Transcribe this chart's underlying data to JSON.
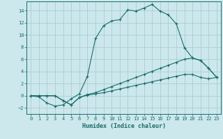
{
  "xlabel": "Humidex (Indice chaleur)",
  "bg_color": "#cce8ec",
  "line_color": "#1a6b6b",
  "grid_color": "#aacdd4",
  "xlim": [
    -0.5,
    23.5
  ],
  "ylim": [
    -3,
    15.5
  ],
  "xticks": [
    0,
    1,
    2,
    3,
    4,
    5,
    6,
    7,
    8,
    9,
    10,
    11,
    12,
    13,
    14,
    15,
    16,
    17,
    18,
    19,
    20,
    21,
    22,
    23
  ],
  "yticks": [
    -2,
    0,
    2,
    4,
    6,
    8,
    10,
    12,
    14
  ],
  "line1_x": [
    0,
    1,
    2,
    3,
    4,
    5,
    6,
    7,
    8,
    9,
    10,
    11,
    12,
    13,
    14,
    15,
    16,
    17,
    18,
    19,
    20,
    21,
    22,
    23
  ],
  "line1_y": [
    0,
    -0.2,
    -1.2,
    -1.7,
    -1.5,
    -0.5,
    0.3,
    3.2,
    9.4,
    11.5,
    12.3,
    12.5,
    14.1,
    13.9,
    14.4,
    15.0,
    13.9,
    13.3,
    11.8,
    7.9,
    6.2,
    5.8,
    4.5,
    3.0
  ],
  "line2_x": [
    0,
    1,
    2,
    3,
    4,
    5,
    6,
    7,
    8,
    9,
    10,
    11,
    12,
    13,
    14,
    15,
    16,
    17,
    18,
    19,
    20,
    21,
    22,
    23
  ],
  "line2_y": [
    0,
    0,
    0,
    0,
    -0.8,
    -1.5,
    -0.3,
    0.2,
    0.5,
    1.0,
    1.5,
    2.0,
    2.5,
    3.0,
    3.5,
    4.0,
    4.5,
    5.0,
    5.5,
    6.0,
    6.2,
    5.8,
    4.5,
    3.0
  ],
  "line3_x": [
    0,
    1,
    2,
    3,
    4,
    5,
    6,
    7,
    8,
    9,
    10,
    11,
    12,
    13,
    14,
    15,
    16,
    17,
    18,
    19,
    20,
    21,
    22,
    23
  ],
  "line3_y": [
    0,
    0,
    0,
    0,
    -0.8,
    -1.5,
    -0.3,
    0.1,
    0.3,
    0.5,
    0.8,
    1.1,
    1.4,
    1.7,
    2.0,
    2.3,
    2.6,
    2.9,
    3.2,
    3.5,
    3.5,
    3.0,
    2.8,
    3.0
  ]
}
